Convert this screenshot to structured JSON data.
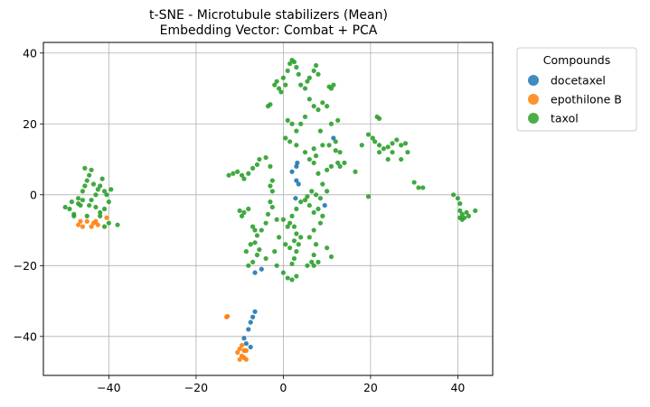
{
  "chart_data": {
    "type": "scatter",
    "title": "t-SNE - Microtubule stabilizers (Mean)",
    "subtitle": "Embedding Vector: Combat + PCA",
    "xlabel": "",
    "ylabel": "",
    "xlim": [
      -55,
      48
    ],
    "ylim": [
      -51,
      43
    ],
    "xticks": [
      -40,
      -20,
      0,
      20,
      40
    ],
    "yticks": [
      -40,
      -20,
      0,
      20,
      40
    ],
    "grid": true,
    "legend": {
      "title": "Compounds",
      "placement": "outside-top-right"
    },
    "series": [
      {
        "name": "docetaxel",
        "color": "#1f77b4",
        "points": [
          [
            -6.5,
            -33
          ],
          [
            -7,
            -34.5
          ],
          [
            -7.5,
            -36
          ],
          [
            -8,
            -38
          ],
          [
            -9,
            -40.5
          ],
          [
            -7.5,
            -43
          ],
          [
            -8.5,
            -42
          ],
          [
            -6.5,
            -22
          ],
          [
            -5,
            -21
          ],
          [
            2,
            6.5
          ],
          [
            3,
            8
          ],
          [
            3.2,
            9
          ],
          [
            3,
            4
          ],
          [
            3.5,
            3
          ],
          [
            2.8,
            -1
          ],
          [
            9.5,
            -3
          ],
          [
            11.5,
            16
          ]
        ]
      },
      {
        "name": "epothilone B",
        "color": "#ff7f0e",
        "points": [
          [
            -47,
            -8.5
          ],
          [
            -46.5,
            -7.5
          ],
          [
            -45,
            -7.5
          ],
          [
            -44,
            -9
          ],
          [
            -43.5,
            -8
          ],
          [
            -42.5,
            -8.5
          ],
          [
            -43,
            -7.5
          ],
          [
            -40.5,
            -6.5
          ],
          [
            -46,
            -9
          ],
          [
            -13,
            -34.5
          ],
          [
            -12.8,
            -34.3
          ],
          [
            -10,
            -43.5
          ],
          [
            -9,
            -44
          ],
          [
            -9.5,
            -45.5
          ],
          [
            -10,
            -46.5
          ],
          [
            -9,
            -46
          ],
          [
            -8.5,
            -44
          ],
          [
            -10.5,
            -44.5
          ],
          [
            -9.5,
            -42.5
          ],
          [
            -8.5,
            -46.5
          ]
        ]
      },
      {
        "name": "taxol",
        "color": "#2ca02c",
        "points": [
          [
            -50,
            -3.5
          ],
          [
            -49,
            -4
          ],
          [
            -48.5,
            -2
          ],
          [
            -48,
            -6
          ],
          [
            -47,
            -1
          ],
          [
            -46.5,
            -3
          ],
          [
            -46,
            1
          ],
          [
            -45.5,
            2.5
          ],
          [
            -45,
            4
          ],
          [
            -44.5,
            5.5
          ],
          [
            -44,
            7
          ],
          [
            -43.5,
            3
          ],
          [
            -43,
            0
          ],
          [
            -42.5,
            1.5
          ],
          [
            -42,
            2.5
          ],
          [
            -41.5,
            4.5
          ],
          [
            -41,
            1
          ],
          [
            -40.5,
            0
          ],
          [
            -40,
            -2
          ],
          [
            -39.5,
            1.5
          ],
          [
            -41,
            -4
          ],
          [
            -42,
            -5
          ],
          [
            -43,
            -3.5
          ],
          [
            -44,
            -1.5
          ],
          [
            -45,
            -6
          ],
          [
            -44.5,
            -3
          ],
          [
            -48,
            -5.5
          ],
          [
            -47,
            -2.5
          ],
          [
            -46,
            -1.5
          ],
          [
            -45.5,
            7.5
          ],
          [
            -41,
            -9
          ],
          [
            -40,
            -8
          ],
          [
            -38,
            -8.5
          ],
          [
            -42,
            -6
          ],
          [
            -12.5,
            5.5
          ],
          [
            -11.5,
            6
          ],
          [
            -10.5,
            6.5
          ],
          [
            -9.5,
            5.5
          ],
          [
            -9,
            4.5
          ],
          [
            -8,
            6
          ],
          [
            -7,
            7.5
          ],
          [
            -6,
            8.5
          ],
          [
            -5.5,
            10
          ],
          [
            -4,
            10.5
          ],
          [
            -3,
            8
          ],
          [
            -10,
            -4.5
          ],
          [
            -9,
            -5
          ],
          [
            -9.5,
            -6
          ],
          [
            -8,
            -4
          ],
          [
            -7,
            -9
          ],
          [
            -6.5,
            -10
          ],
          [
            -6,
            -11.5
          ],
          [
            -5,
            -10
          ],
          [
            -4,
            -8
          ],
          [
            -3.5,
            -5.5
          ],
          [
            -3,
            -2
          ],
          [
            -2.5,
            -3.5
          ],
          [
            -2.5,
            1
          ],
          [
            -3,
            2.5
          ],
          [
            -2.5,
            4
          ],
          [
            -8.5,
            -16
          ],
          [
            -7.5,
            -14
          ],
          [
            -6.5,
            -13.5
          ],
          [
            -5.5,
            -15.5
          ],
          [
            -6,
            -17
          ],
          [
            -4,
            -18
          ],
          [
            -7,
            -19
          ],
          [
            -8,
            -20
          ],
          [
            -2,
            -16
          ],
          [
            -1.5,
            -20
          ],
          [
            0,
            -22
          ],
          [
            1,
            -23.5
          ],
          [
            2,
            -24
          ],
          [
            3,
            -23
          ],
          [
            2,
            -19.5
          ],
          [
            2.5,
            -18
          ],
          [
            3,
            -16
          ],
          [
            3.5,
            -14
          ],
          [
            4,
            -12
          ],
          [
            3,
            -11
          ],
          [
            2.5,
            -9
          ],
          [
            1.5,
            -8
          ],
          [
            2,
            -6
          ],
          [
            3,
            -4
          ],
          [
            4,
            -2
          ],
          [
            5,
            -1.5
          ],
          [
            6,
            -3
          ],
          [
            7,
            -5
          ],
          [
            8,
            -4
          ],
          [
            9,
            -6
          ],
          [
            8.5,
            -8
          ],
          [
            7,
            -10
          ],
          [
            6,
            -12
          ],
          [
            7.5,
            -14
          ],
          [
            7,
            -17
          ],
          [
            6.5,
            -19
          ],
          [
            5.5,
            -20
          ],
          [
            7,
            -20
          ],
          [
            8,
            -19
          ],
          [
            11,
            -17.5
          ],
          [
            10,
            -15
          ],
          [
            -1.5,
            -7
          ],
          [
            0,
            -7
          ],
          [
            1,
            -9
          ],
          [
            2.5,
            -13
          ],
          [
            0.5,
            -14
          ],
          [
            1.5,
            -15
          ],
          [
            -1,
            -12
          ],
          [
            -3.5,
            25
          ],
          [
            -3,
            25.5
          ],
          [
            -2,
            31
          ],
          [
            -1.5,
            32
          ],
          [
            -1,
            30
          ],
          [
            -0.5,
            29
          ],
          [
            0,
            33
          ],
          [
            0.5,
            31
          ],
          [
            1,
            35
          ],
          [
            1.5,
            37
          ],
          [
            2,
            38
          ],
          [
            2.5,
            37.5
          ],
          [
            3,
            36
          ],
          [
            3.5,
            34
          ],
          [
            4,
            31
          ],
          [
            5,
            30
          ],
          [
            5.5,
            32
          ],
          [
            6,
            33
          ],
          [
            7,
            35
          ],
          [
            7.5,
            36.5
          ],
          [
            8,
            34
          ],
          [
            10.5,
            30.5
          ],
          [
            11,
            30
          ],
          [
            11.5,
            31
          ],
          [
            6,
            27
          ],
          [
            7,
            25
          ],
          [
            8,
            24
          ],
          [
            9,
            26
          ],
          [
            10,
            25
          ],
          [
            5,
            22
          ],
          [
            4,
            20
          ],
          [
            3,
            18
          ],
          [
            2,
            20
          ],
          [
            1,
            21
          ],
          [
            0.5,
            16
          ],
          [
            1.5,
            15
          ],
          [
            3,
            14
          ],
          [
            5,
            12
          ],
          [
            6,
            10
          ],
          [
            7,
            9
          ],
          [
            8,
            6
          ],
          [
            9,
            3
          ],
          [
            10,
            1
          ],
          [
            8.5,
            -1
          ],
          [
            7.5,
            0
          ],
          [
            6.5,
            1
          ],
          [
            5.5,
            -0.5
          ],
          [
            7,
            13
          ],
          [
            7.5,
            11
          ],
          [
            9,
            14
          ],
          [
            10.5,
            14
          ],
          [
            12,
            15
          ],
          [
            13,
            12
          ],
          [
            12.5,
            9
          ],
          [
            11,
            8
          ],
          [
            10,
            7
          ],
          [
            13,
            8
          ],
          [
            16.5,
            6.5
          ],
          [
            14,
            9
          ],
          [
            12,
            12.5
          ],
          [
            8.5,
            18
          ],
          [
            11,
            20
          ],
          [
            12.5,
            21
          ],
          [
            18,
            14
          ],
          [
            19.5,
            17
          ],
          [
            20.5,
            16
          ],
          [
            21,
            15
          ],
          [
            22,
            14
          ],
          [
            23,
            13
          ],
          [
            21.5,
            22
          ],
          [
            22,
            21.5
          ],
          [
            24,
            13.5
          ],
          [
            25,
            14.5
          ],
          [
            26,
            15.5
          ],
          [
            27,
            14
          ],
          [
            28,
            14.5
          ],
          [
            28.5,
            12
          ],
          [
            25,
            12
          ],
          [
            27,
            10
          ],
          [
            24,
            10
          ],
          [
            22,
            12
          ],
          [
            30,
            3.5
          ],
          [
            31,
            2
          ],
          [
            32,
            2
          ],
          [
            19.5,
            -0.5
          ],
          [
            39,
            0
          ],
          [
            40,
            -1
          ],
          [
            40.5,
            -2.5
          ],
          [
            40.5,
            -4.5
          ],
          [
            41,
            -5.5
          ],
          [
            41.5,
            -6.5
          ],
          [
            42,
            -5
          ],
          [
            42.5,
            -6
          ],
          [
            40.5,
            -6.5
          ],
          [
            41,
            -7
          ],
          [
            44,
            -4.5
          ]
        ]
      }
    ]
  }
}
